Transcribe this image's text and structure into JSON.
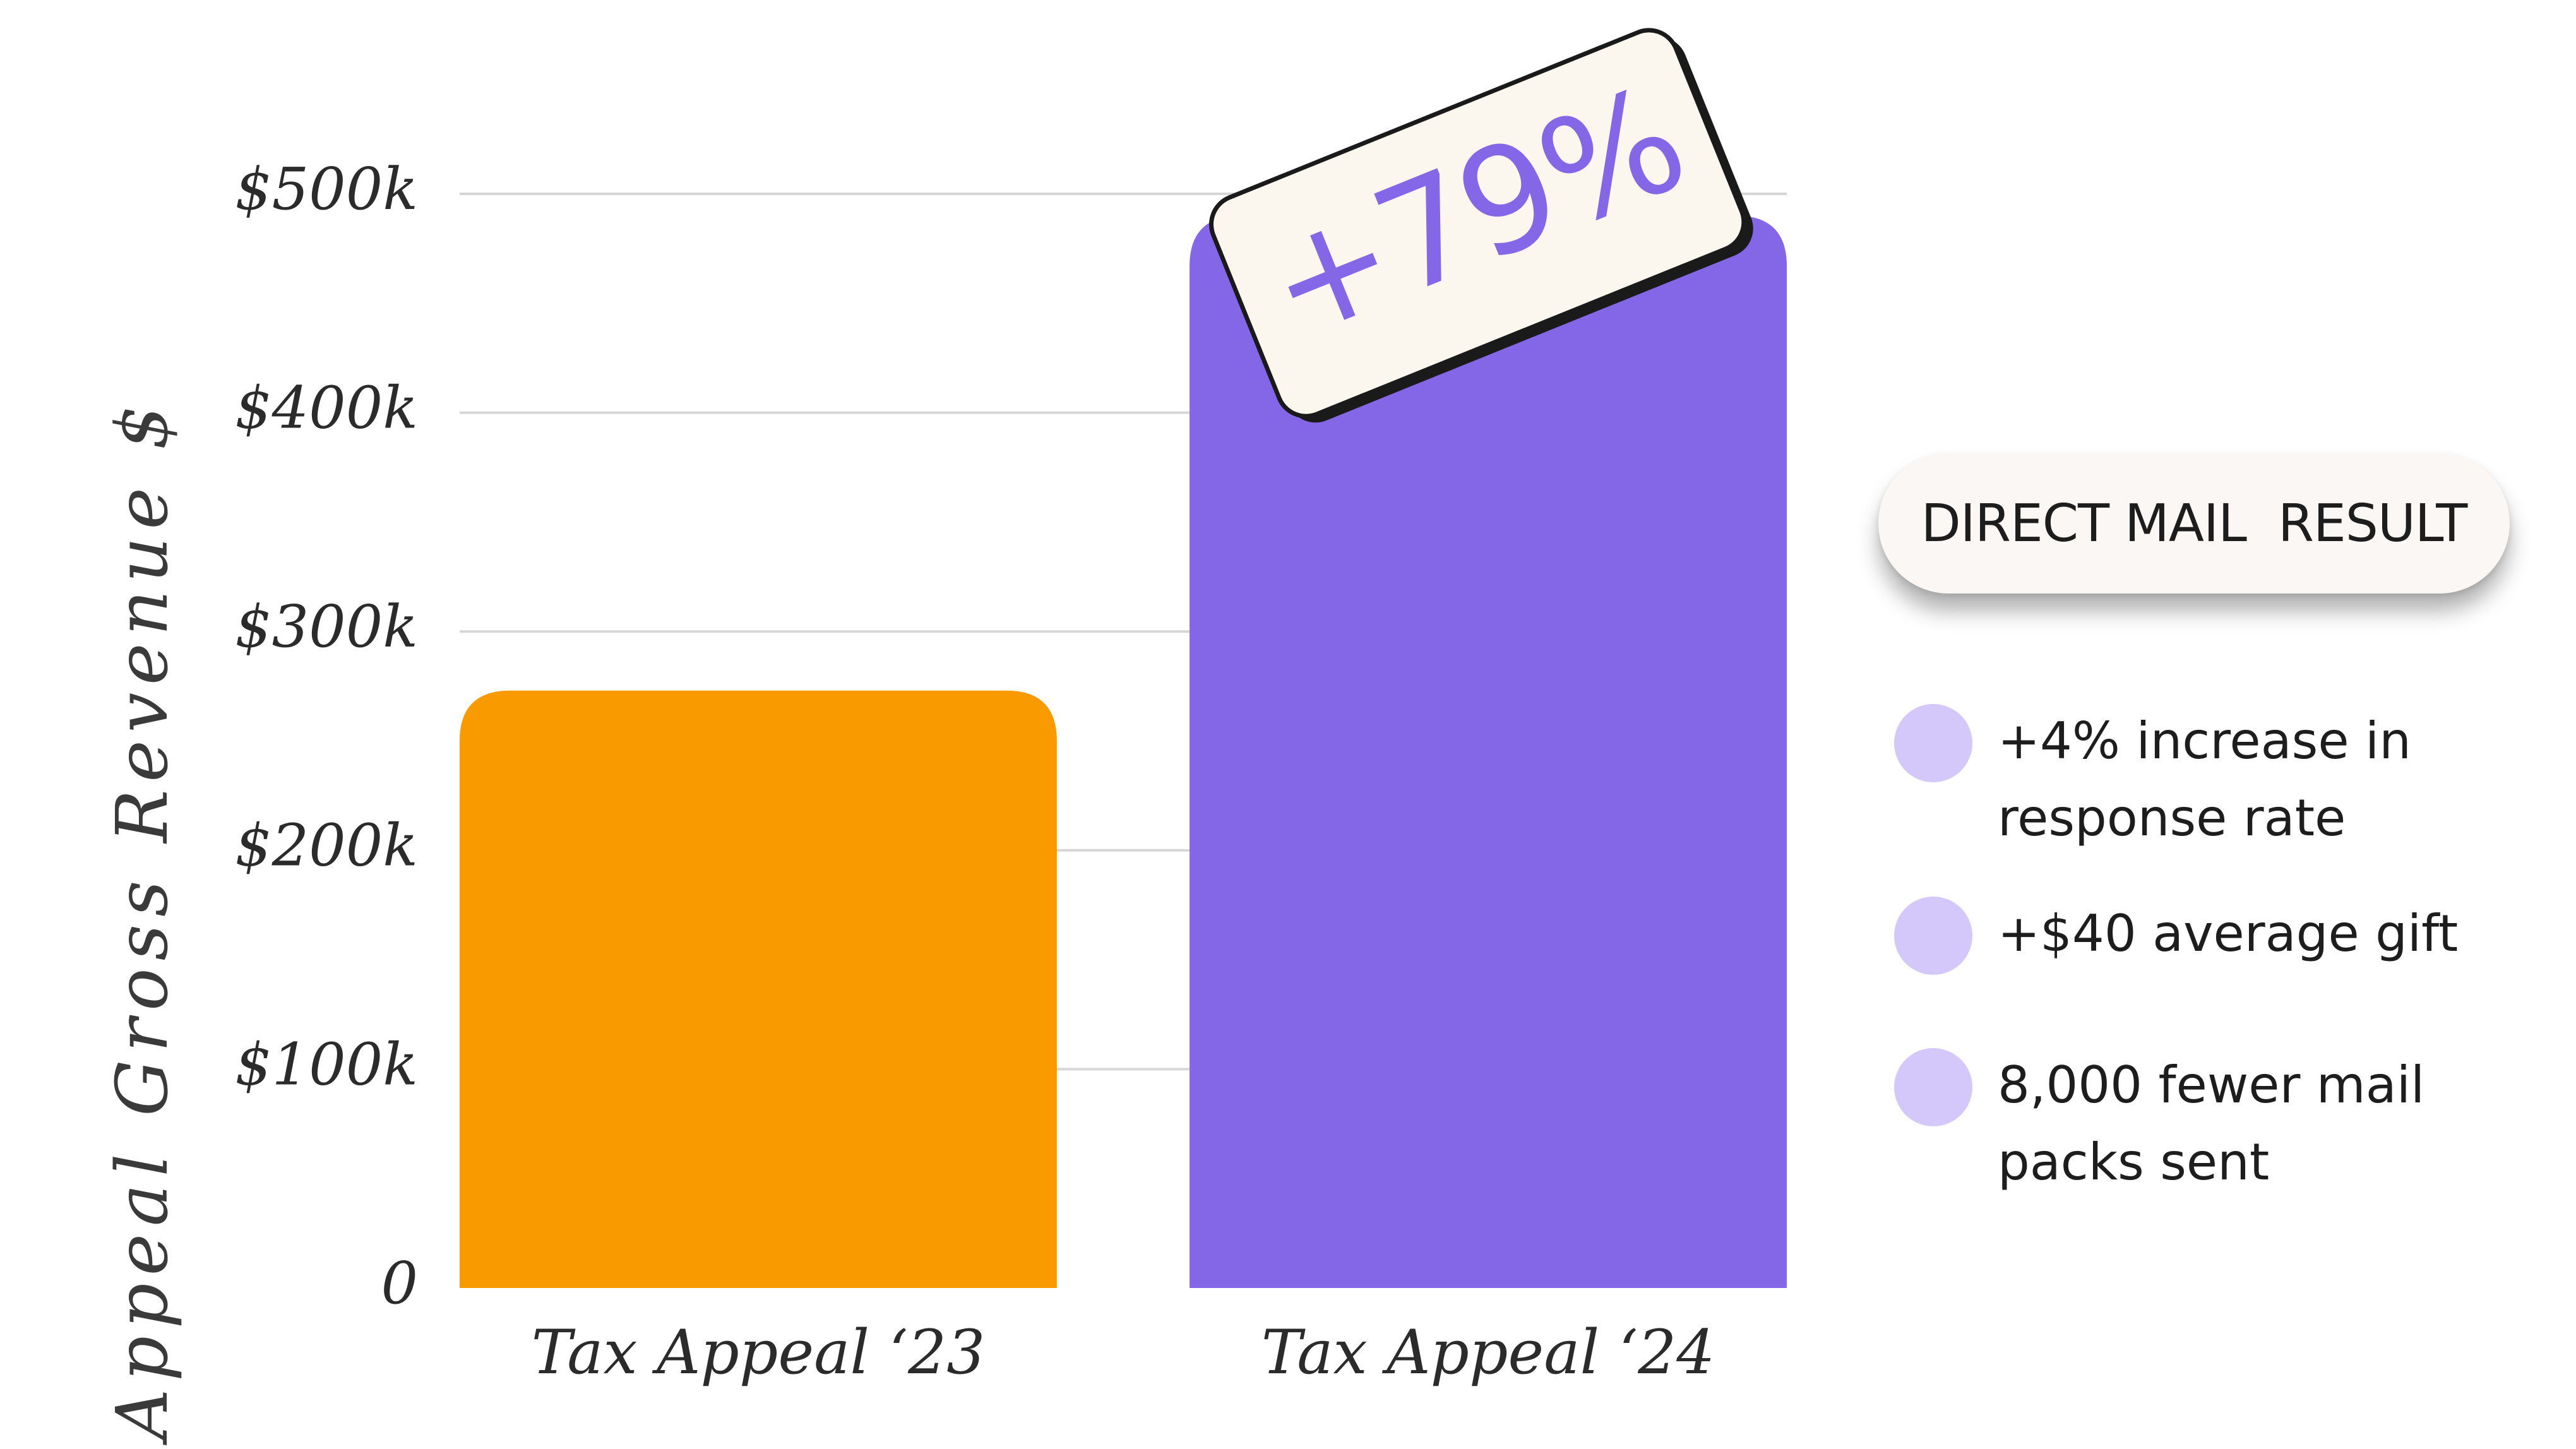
{
  "chart_data": {
    "type": "bar",
    "categories": [
      "Tax Appeal ‘23",
      "Tax Appeal ‘24"
    ],
    "values": [
      273000,
      490000
    ],
    "colors": [
      "#f99a00",
      "#8367e6"
    ],
    "ylabel": "Appeal Gross Revenue $",
    "ylim": [
      0,
      500000
    ],
    "yticks": [
      {
        "value": 0,
        "label": "0"
      },
      {
        "value": 100000,
        "label": "$100k"
      },
      {
        "value": 200000,
        "label": "$200k"
      },
      {
        "value": 300000,
        "label": "$300k"
      },
      {
        "value": 400000,
        "label": "$400k"
      },
      {
        "value": 500000,
        "label": "$500k"
      }
    ],
    "grid": true,
    "annotation": {
      "text": "+79%",
      "category": "Tax Appeal ‘24"
    }
  },
  "legend_panel": {
    "title": "DIRECT MAIL  RESULT",
    "bullets": [
      "+4% increase in response rate",
      "+$40 average gift",
      "8,000 fewer mail packs sent"
    ]
  },
  "colors": {
    "badge_bg": "#fbf7ee",
    "badge_text": "#8367e6",
    "bullet_dot": "#d4c8fb"
  }
}
